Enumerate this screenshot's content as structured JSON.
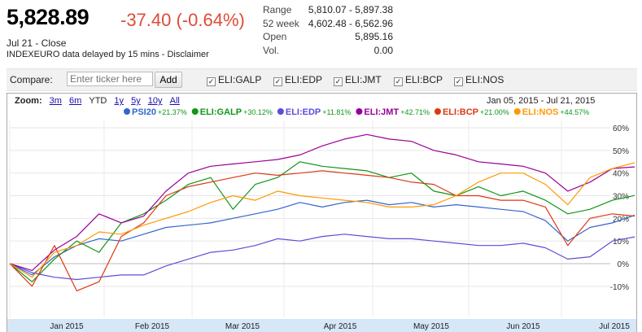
{
  "quote": {
    "price": "5,828.89",
    "change": "-37.40 (-0.64%)",
    "date": "Jul 21 - Close",
    "disclaimer": "INDEXEURO data delayed by 15 mins - Disclaimer"
  },
  "stats": [
    {
      "k": "Range",
      "v": "5,810.07 - 5,897.38"
    },
    {
      "k": "52 week",
      "v": "4,602.48 - 6,562.96"
    },
    {
      "k": "Open",
      "v": "5,895.16"
    },
    {
      "k": "Vol.",
      "v": "0.00"
    }
  ],
  "compare": {
    "label": "Compare:",
    "placeholder": "Enter ticker here",
    "add": "Add",
    "items": [
      "ELI:GALP",
      "ELI:EDP",
      "ELI:JMT",
      "ELI:BCP",
      "ELI:NOS"
    ]
  },
  "zoom": {
    "label": "Zoom:",
    "options": [
      "3m",
      "6m",
      "YTD",
      "1y",
      "5y",
      "10y",
      "All"
    ],
    "selected": "YTD"
  },
  "date_range": {
    "from": "Jan 05, 2015",
    "to": "Jul 21, 2015"
  },
  "colors": {
    "PSI20": "#3366cc",
    "GALP": "#109618",
    "EDP": "#5b4ed8",
    "JMT": "#990099",
    "BCP": "#dc3912",
    "NOS": "#ff9900",
    "negative": "#dd4b39"
  },
  "chart_data": {
    "type": "line",
    "x": [
      "Jan 05",
      "Jan 12",
      "Jan 19",
      "Jan 26",
      "Feb 02",
      "Feb 09",
      "Feb 16",
      "Feb 23",
      "Mar 02",
      "Mar 09",
      "Mar 16",
      "Mar 23",
      "Mar 30",
      "Apr 06",
      "Apr 13",
      "Apr 20",
      "Apr 27",
      "May 04",
      "May 11",
      "May 18",
      "May 25",
      "Jun 01",
      "Jun 08",
      "Jun 15",
      "Jun 22",
      "Jun 29",
      "Jul 06",
      "Jul 13",
      "Jul 21"
    ],
    "x_tick_labels": [
      "Jan 2015",
      "Feb 2015",
      "Mar 2015",
      "Apr 2015",
      "May 2015",
      "Jun 2015",
      "Jul 2015"
    ],
    "y_tick_labels": [
      "60%",
      "50%",
      "40%",
      "30%",
      "20%",
      "10%",
      "0%",
      "-10%"
    ],
    "ylim": [
      -10,
      60
    ],
    "legend_position": "top",
    "series": [
      {
        "name": "PSI20",
        "legend": "+21.37%",
        "values": [
          0,
          -5,
          3,
          8,
          11,
          10,
          13,
          16,
          17,
          18,
          20,
          22,
          24,
          27,
          25,
          27,
          28,
          26,
          27,
          25,
          26,
          25,
          24,
          23,
          19,
          10,
          16,
          18,
          21.37
        ]
      },
      {
        "name": "ELI:GALP",
        "legend": "+30.12%",
        "values": [
          0,
          -8,
          2,
          10,
          5,
          18,
          22,
          28,
          35,
          38,
          24,
          35,
          38,
          45,
          43,
          42,
          41,
          38,
          40,
          32,
          30,
          34,
          30,
          32,
          28,
          22,
          24,
          28,
          30.12
        ]
      },
      {
        "name": "ELI:EDP",
        "legend": "+11.81%",
        "values": [
          0,
          -4,
          -6,
          -7,
          -6,
          -5,
          -5,
          -1,
          2,
          5,
          6,
          8,
          11,
          10,
          12,
          13,
          12,
          11,
          11,
          10,
          9,
          8,
          8,
          9,
          7,
          2,
          3,
          10,
          11.81
        ]
      },
      {
        "name": "ELI:JMT",
        "legend": "+42.71%",
        "values": [
          0,
          -3,
          6,
          12,
          22,
          18,
          21,
          32,
          40,
          43,
          44,
          45,
          46,
          48,
          52,
          55,
          57,
          55,
          54,
          50,
          48,
          45,
          44,
          43,
          40,
          32,
          36,
          42,
          42.71
        ]
      },
      {
        "name": "ELI:BCP",
        "legend": "+21.00%",
        "values": [
          0,
          -10,
          8,
          -12,
          -8,
          12,
          18,
          30,
          34,
          36,
          38,
          40,
          39,
          40,
          41,
          40,
          39,
          38,
          36,
          35,
          30,
          30,
          28,
          28,
          25,
          8,
          20,
          22,
          21.0
        ]
      },
      {
        "name": "ELI:NOS",
        "legend": "+44.57%",
        "values": [
          0,
          -6,
          5,
          8,
          14,
          13,
          17,
          20,
          23,
          27,
          30,
          28,
          32,
          30,
          29,
          28,
          27,
          25,
          25,
          26,
          30,
          36,
          40,
          40,
          35,
          26,
          38,
          42,
          44.57
        ]
      }
    ]
  }
}
